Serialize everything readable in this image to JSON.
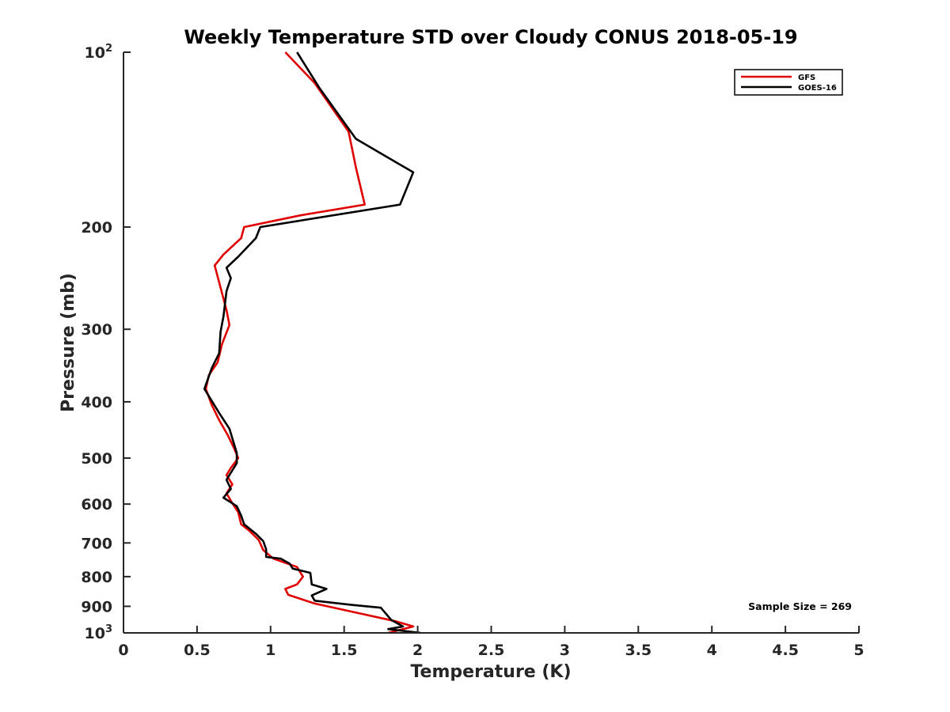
{
  "chart_data": {
    "type": "line",
    "title": "Weekly Temperature STD over Cloudy CONUS 2018-05-19",
    "xlabel": "Temperature (K)",
    "ylabel": "Pressure (mb)",
    "xlim": [
      0,
      5
    ],
    "ylim": [
      100,
      1000
    ],
    "y_scale": "log",
    "y_reversed": true,
    "grid": false,
    "legend_position": "top-right",
    "annotation": "Sample Size = 269",
    "x_ticks": [
      {
        "value": 0,
        "label": "0"
      },
      {
        "value": 0.5,
        "label": "0.5"
      },
      {
        "value": 1,
        "label": "1"
      },
      {
        "value": 1.5,
        "label": "1.5"
      },
      {
        "value": 2,
        "label": "2"
      },
      {
        "value": 2.5,
        "label": "2.5"
      },
      {
        "value": 3,
        "label": "3"
      },
      {
        "value": 3.5,
        "label": "3.5"
      },
      {
        "value": 4,
        "label": "4"
      },
      {
        "value": 4.5,
        "label": "4.5"
      },
      {
        "value": 5,
        "label": "5"
      }
    ],
    "y_ticks": [
      {
        "value": 100,
        "label": "10",
        "sup": "2"
      },
      {
        "value": 200,
        "label": "200",
        "sup": ""
      },
      {
        "value": 300,
        "label": "300",
        "sup": ""
      },
      {
        "value": 400,
        "label": "400",
        "sup": ""
      },
      {
        "value": 500,
        "label": "500",
        "sup": ""
      },
      {
        "value": 600,
        "label": "600",
        "sup": ""
      },
      {
        "value": 700,
        "label": "700",
        "sup": ""
      },
      {
        "value": 800,
        "label": "800",
        "sup": ""
      },
      {
        "value": 900,
        "label": "900",
        "sup": ""
      },
      {
        "value": 1000,
        "label": "10",
        "sup": "3"
      }
    ],
    "series": [
      {
        "name": "GFS",
        "color": "#e00000",
        "points": [
          [
            1.1,
            100
          ],
          [
            1.3,
            113
          ],
          [
            1.53,
            137
          ],
          [
            1.58,
            158
          ],
          [
            1.64,
            183
          ],
          [
            1.2,
            191
          ],
          [
            0.82,
            200
          ],
          [
            0.8,
            209
          ],
          [
            0.68,
            223
          ],
          [
            0.62,
            233
          ],
          [
            0.7,
            278
          ],
          [
            0.72,
            295
          ],
          [
            0.67,
            318
          ],
          [
            0.64,
            342
          ],
          [
            0.58,
            360
          ],
          [
            0.56,
            380
          ],
          [
            0.6,
            405
          ],
          [
            0.65,
            430
          ],
          [
            0.71,
            457
          ],
          [
            0.75,
            480
          ],
          [
            0.78,
            500
          ],
          [
            0.73,
            520
          ],
          [
            0.7,
            535
          ],
          [
            0.74,
            555
          ],
          [
            0.7,
            575
          ],
          [
            0.74,
            598
          ],
          [
            0.78,
            620
          ],
          [
            0.8,
            650
          ],
          [
            0.85,
            665
          ],
          [
            0.92,
            692
          ],
          [
            0.95,
            720
          ],
          [
            1.02,
            745
          ],
          [
            1.18,
            770
          ],
          [
            1.22,
            800
          ],
          [
            1.18,
            825
          ],
          [
            1.1,
            840
          ],
          [
            1.12,
            860
          ],
          [
            1.3,
            890
          ],
          [
            1.6,
            925
          ],
          [
            1.85,
            955
          ],
          [
            1.97,
            975
          ],
          [
            1.8,
            1000
          ]
        ]
      },
      {
        "name": "GOES-16",
        "color": "#000000",
        "points": [
          [
            1.18,
            100
          ],
          [
            1.33,
            115
          ],
          [
            1.48,
            130
          ],
          [
            1.58,
            141
          ],
          [
            1.97,
            161
          ],
          [
            1.88,
            183
          ],
          [
            0.93,
            200
          ],
          [
            0.9,
            209
          ],
          [
            0.78,
            225
          ],
          [
            0.7,
            235
          ],
          [
            0.73,
            245
          ],
          [
            0.7,
            258
          ],
          [
            0.68,
            285
          ],
          [
            0.66,
            303
          ],
          [
            0.65,
            330
          ],
          [
            0.6,
            350
          ],
          [
            0.55,
            380
          ],
          [
            0.65,
            418
          ],
          [
            0.72,
            445
          ],
          [
            0.77,
            490
          ],
          [
            0.77,
            510
          ],
          [
            0.7,
            545
          ],
          [
            0.73,
            565
          ],
          [
            0.68,
            585
          ],
          [
            0.77,
            605
          ],
          [
            0.8,
            628
          ],
          [
            0.82,
            650
          ],
          [
            0.9,
            675
          ],
          [
            0.95,
            695
          ],
          [
            0.97,
            718
          ],
          [
            0.97,
            740
          ],
          [
            1.07,
            745
          ],
          [
            1.13,
            760
          ],
          [
            1.15,
            775
          ],
          [
            1.27,
            788
          ],
          [
            1.28,
            825
          ],
          [
            1.38,
            840
          ],
          [
            1.28,
            862
          ],
          [
            1.3,
            880
          ],
          [
            1.55,
            895
          ],
          [
            1.75,
            905
          ],
          [
            1.82,
            950
          ],
          [
            1.9,
            975
          ],
          [
            1.8,
            985
          ],
          [
            2.02,
            1000
          ]
        ]
      }
    ]
  }
}
